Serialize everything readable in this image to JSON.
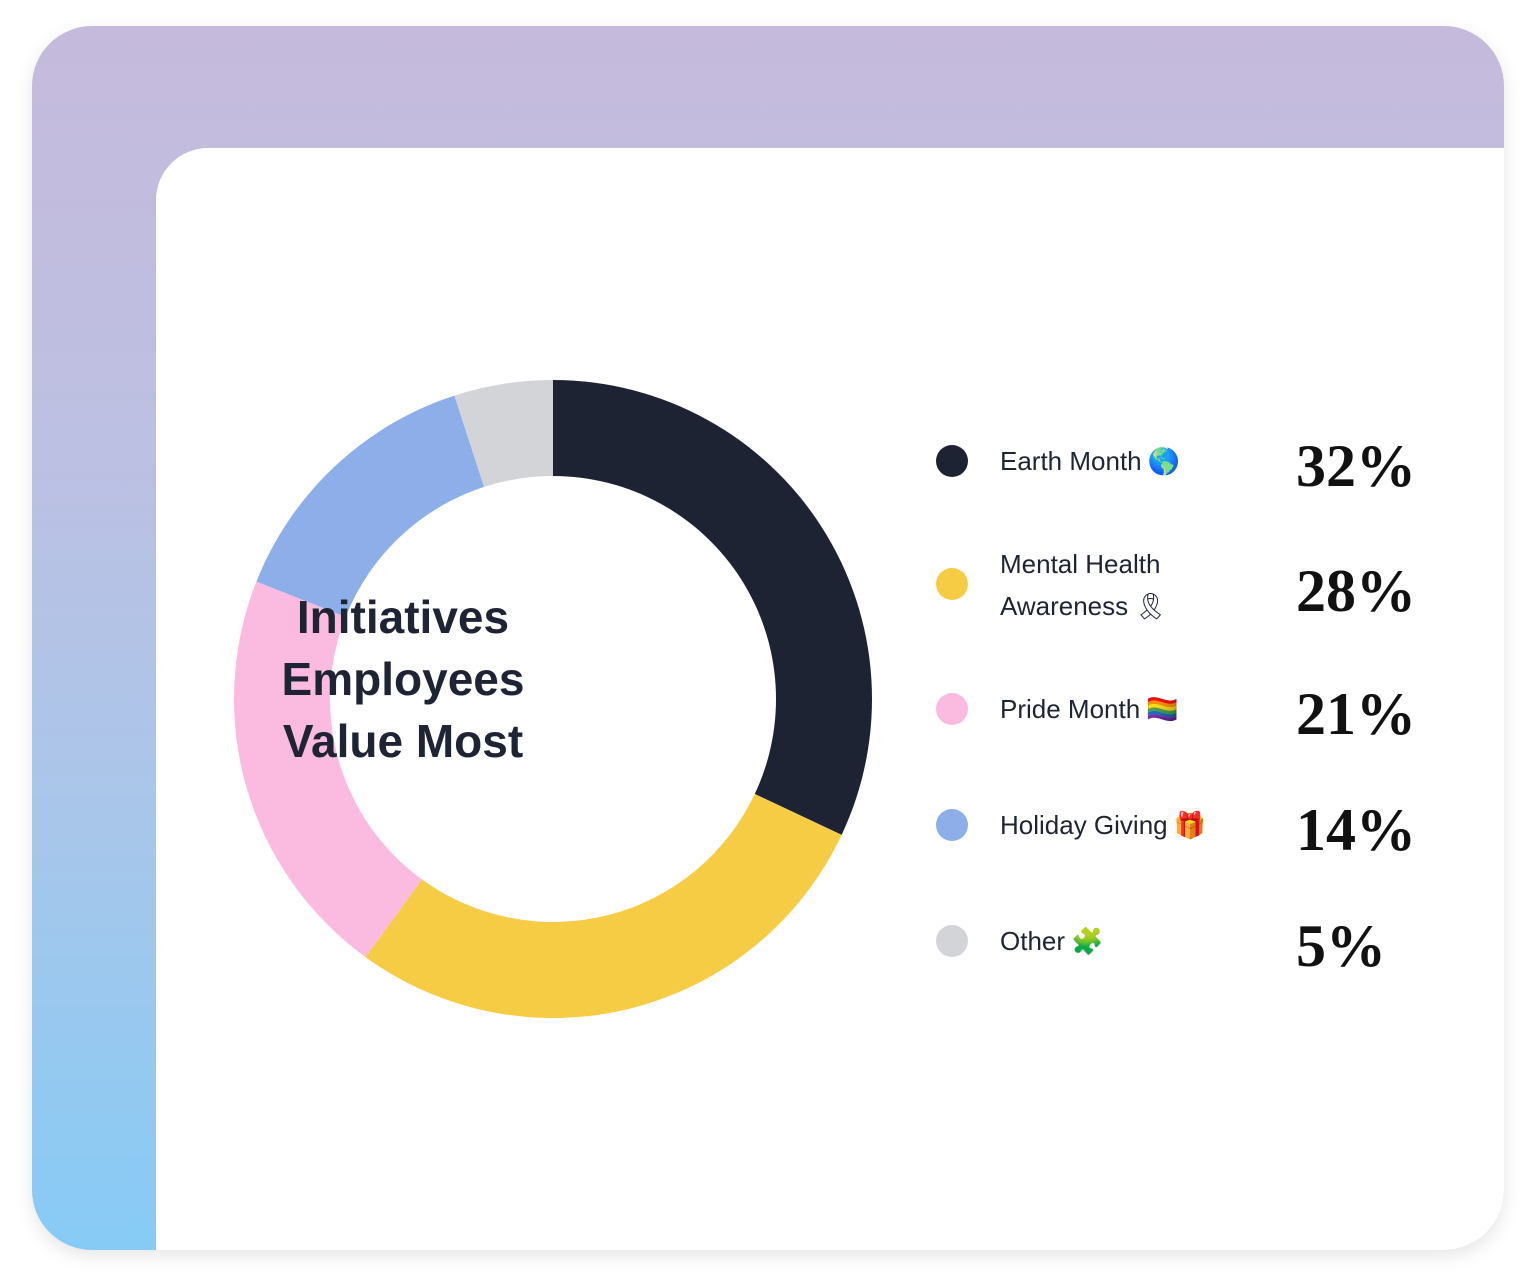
{
  "chart_data": {
    "type": "pie",
    "variant": "donut",
    "title": "Initiatives Employees Value Most",
    "title_lines": [
      "Initiatives",
      "Employees",
      "Value Most"
    ],
    "categories": [
      "Earth Month",
      "Mental Health Awareness",
      "Pride Month",
      "Holiday Giving",
      "Other"
    ],
    "values": [
      32,
      28,
      21,
      14,
      5
    ],
    "value_labels": [
      "32%",
      "28%",
      "21%",
      "14%",
      "5%"
    ],
    "colors": [
      "#1e2333",
      "#f7cc45",
      "#fbbbe0",
      "#8eaeea",
      "#d3d4d8"
    ],
    "legend": {
      "placement": "right",
      "items": [
        {
          "label": "Earth Month",
          "label_lines": [
            "Earth Month"
          ],
          "emoji": "🌎",
          "icon": "globe-icon",
          "value": "32%",
          "color": "#1e2333"
        },
        {
          "label": "Mental Health Awareness",
          "label_lines": [
            "Mental Health",
            "Awareness"
          ],
          "emoji": "🎗",
          "icon": "ribbon-icon",
          "value": "28%",
          "color": "#f7cc45"
        },
        {
          "label": "Pride Month",
          "label_lines": [
            "Pride Month"
          ],
          "emoji": "🏳️‍🌈",
          "icon": "rainbow-flag-icon",
          "value": "21%",
          "color": "#fbbbe0"
        },
        {
          "label": "Holiday Giving",
          "label_lines": [
            "Holiday Giving"
          ],
          "emoji": "🎁",
          "icon": "gift-icon",
          "value": "14%",
          "color": "#8eaeea"
        },
        {
          "label": "Other",
          "label_lines": [
            "Other"
          ],
          "emoji": "🧩",
          "icon": "puzzle-piece-icon",
          "value": "5%",
          "color": "#d3d4d8"
        }
      ]
    }
  }
}
